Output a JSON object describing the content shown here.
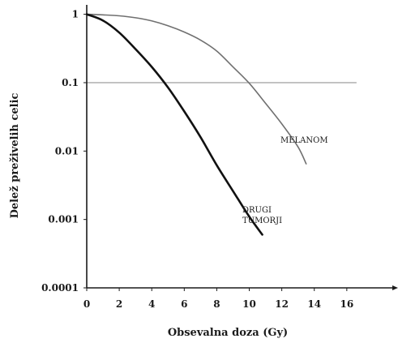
{
  "chart_data": {
    "type": "line",
    "title": "",
    "xlabel": "Obsevalna doza (Gy)",
    "ylabel": "Delež preživelih celic",
    "y_scale": "log",
    "xlim": [
      0,
      19
    ],
    "ylim": [
      0.0001,
      1.3
    ],
    "x_ticks": [
      0,
      2,
      4,
      6,
      8,
      10,
      12,
      14,
      16
    ],
    "x_tick_labels": [
      "0",
      "2",
      "4",
      "6",
      "8",
      "10",
      "12",
      "14",
      "16"
    ],
    "y_ticks": [
      1,
      0.1,
      0.01,
      0.001,
      0.0001
    ],
    "y_tick_labels": [
      "1",
      "0.1",
      "0.01",
      "0.001",
      "0.0001"
    ],
    "reference_line": {
      "y": 0.1,
      "x_range": [
        0,
        16.6
      ],
      "color": "#a9a9a9"
    },
    "series": [
      {
        "name": "MELANOM",
        "color": "#707070",
        "x": [
          0,
          1,
          2,
          3,
          4,
          5,
          6,
          7,
          8,
          9,
          10,
          11,
          12,
          13,
          13.5
        ],
        "y": [
          1,
          0.98,
          0.95,
          0.89,
          0.8,
          0.68,
          0.55,
          0.42,
          0.29,
          0.17,
          0.098,
          0.05,
          0.025,
          0.0115,
          0.0065
        ],
        "label_lines": [
          "MELANOM"
        ]
      },
      {
        "name": "DRUGI TUMORJI",
        "color": "#111111",
        "x": [
          0,
          1,
          2,
          3,
          4,
          5,
          6,
          7,
          8,
          9,
          10,
          10.8
        ],
        "y": [
          1,
          0.81,
          0.54,
          0.31,
          0.17,
          0.085,
          0.038,
          0.016,
          0.0062,
          0.0026,
          0.0011,
          0.0006
        ],
        "label_lines": [
          "DRUGI",
          "TUMORJI"
        ]
      }
    ]
  }
}
